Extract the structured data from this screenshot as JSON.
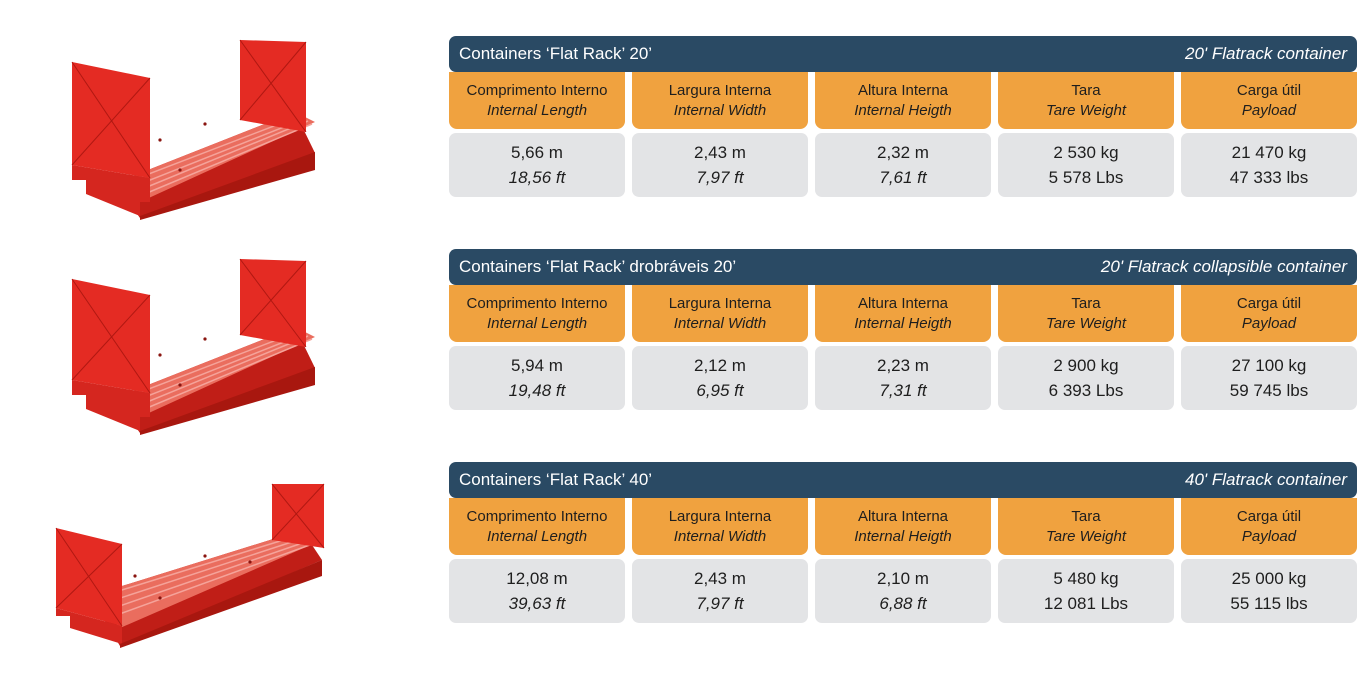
{
  "colors": {
    "header_bg": "#2a4a64",
    "column_header_bg": "#f0a23f",
    "value_bg": "#e3e4e6",
    "container_red": "#e42b23",
    "deck_red": "#ea6d5e"
  },
  "tables": [
    {
      "title_pt": "Containers ‘Flat Rack’ 20’",
      "title_en": "20' Flatrack container",
      "image_icon": "flatrack-20-container-illustration",
      "columns": [
        {
          "label_pt": "Comprimento Interno",
          "label_en": "Internal Length",
          "value_1": "5,66 m",
          "value_2": "18,56 ft"
        },
        {
          "label_pt": "Largura Interna",
          "label_en": "Internal Width",
          "value_1": "2,43 m",
          "value_2": "7,97 ft"
        },
        {
          "label_pt": "Altura Interna",
          "label_en": "Internal Heigth",
          "value_1": "2,32 m",
          "value_2": "7,61 ft"
        },
        {
          "label_pt": "Tara",
          "label_en": "Tare Weight",
          "value_1": "2 530 kg",
          "value_2": "5 578 Lbs"
        },
        {
          "label_pt": "Carga útil",
          "label_en": "Payload",
          "value_1": "21 470 kg",
          "value_2": "47 333 lbs"
        }
      ]
    },
    {
      "title_pt": "Containers ‘Flat Rack’ drobráveis 20’",
      "title_en": "20' Flatrack collapsible container",
      "image_icon": "flatrack-20-collapsible-container-illustration",
      "columns": [
        {
          "label_pt": "Comprimento Interno",
          "label_en": "Internal Length",
          "value_1": "5,94 m",
          "value_2": "19,48 ft"
        },
        {
          "label_pt": "Largura Interna",
          "label_en": "Internal Width",
          "value_1": "2,12 m",
          "value_2": "6,95 ft"
        },
        {
          "label_pt": "Altura Interna",
          "label_en": "Internal Heigth",
          "value_1": "2,23 m",
          "value_2": "7,31 ft"
        },
        {
          "label_pt": "Tara",
          "label_en": "Tare Weight",
          "value_1": "2 900 kg",
          "value_2": "6 393 Lbs"
        },
        {
          "label_pt": "Carga útil",
          "label_en": "Payload",
          "value_1": "27 100 kg",
          "value_2": "59 745 lbs"
        }
      ]
    },
    {
      "title_pt": "Containers ‘Flat Rack’ 40’",
      "title_en": "40' Flatrack container",
      "image_icon": "flatrack-40-container-illustration",
      "columns": [
        {
          "label_pt": "Comprimento Interno",
          "label_en": "Internal Length",
          "value_1": "12,08 m",
          "value_2": "39,63 ft"
        },
        {
          "label_pt": "Largura Interna",
          "label_en": "Internal Width",
          "value_1": "2,43 m",
          "value_2": "7,97 ft"
        },
        {
          "label_pt": "Altura Interna",
          "label_en": "Internal Heigth",
          "value_1": "2,10 m",
          "value_2": "6,88 ft"
        },
        {
          "label_pt": "Tara",
          "label_en": "Tare Weight",
          "value_1": "5 480 kg",
          "value_2": "12 081 Lbs"
        },
        {
          "label_pt": "Carga útil",
          "label_en": "Payload",
          "value_1": "25 000 kg",
          "value_2": "55 115 lbs"
        }
      ]
    }
  ]
}
